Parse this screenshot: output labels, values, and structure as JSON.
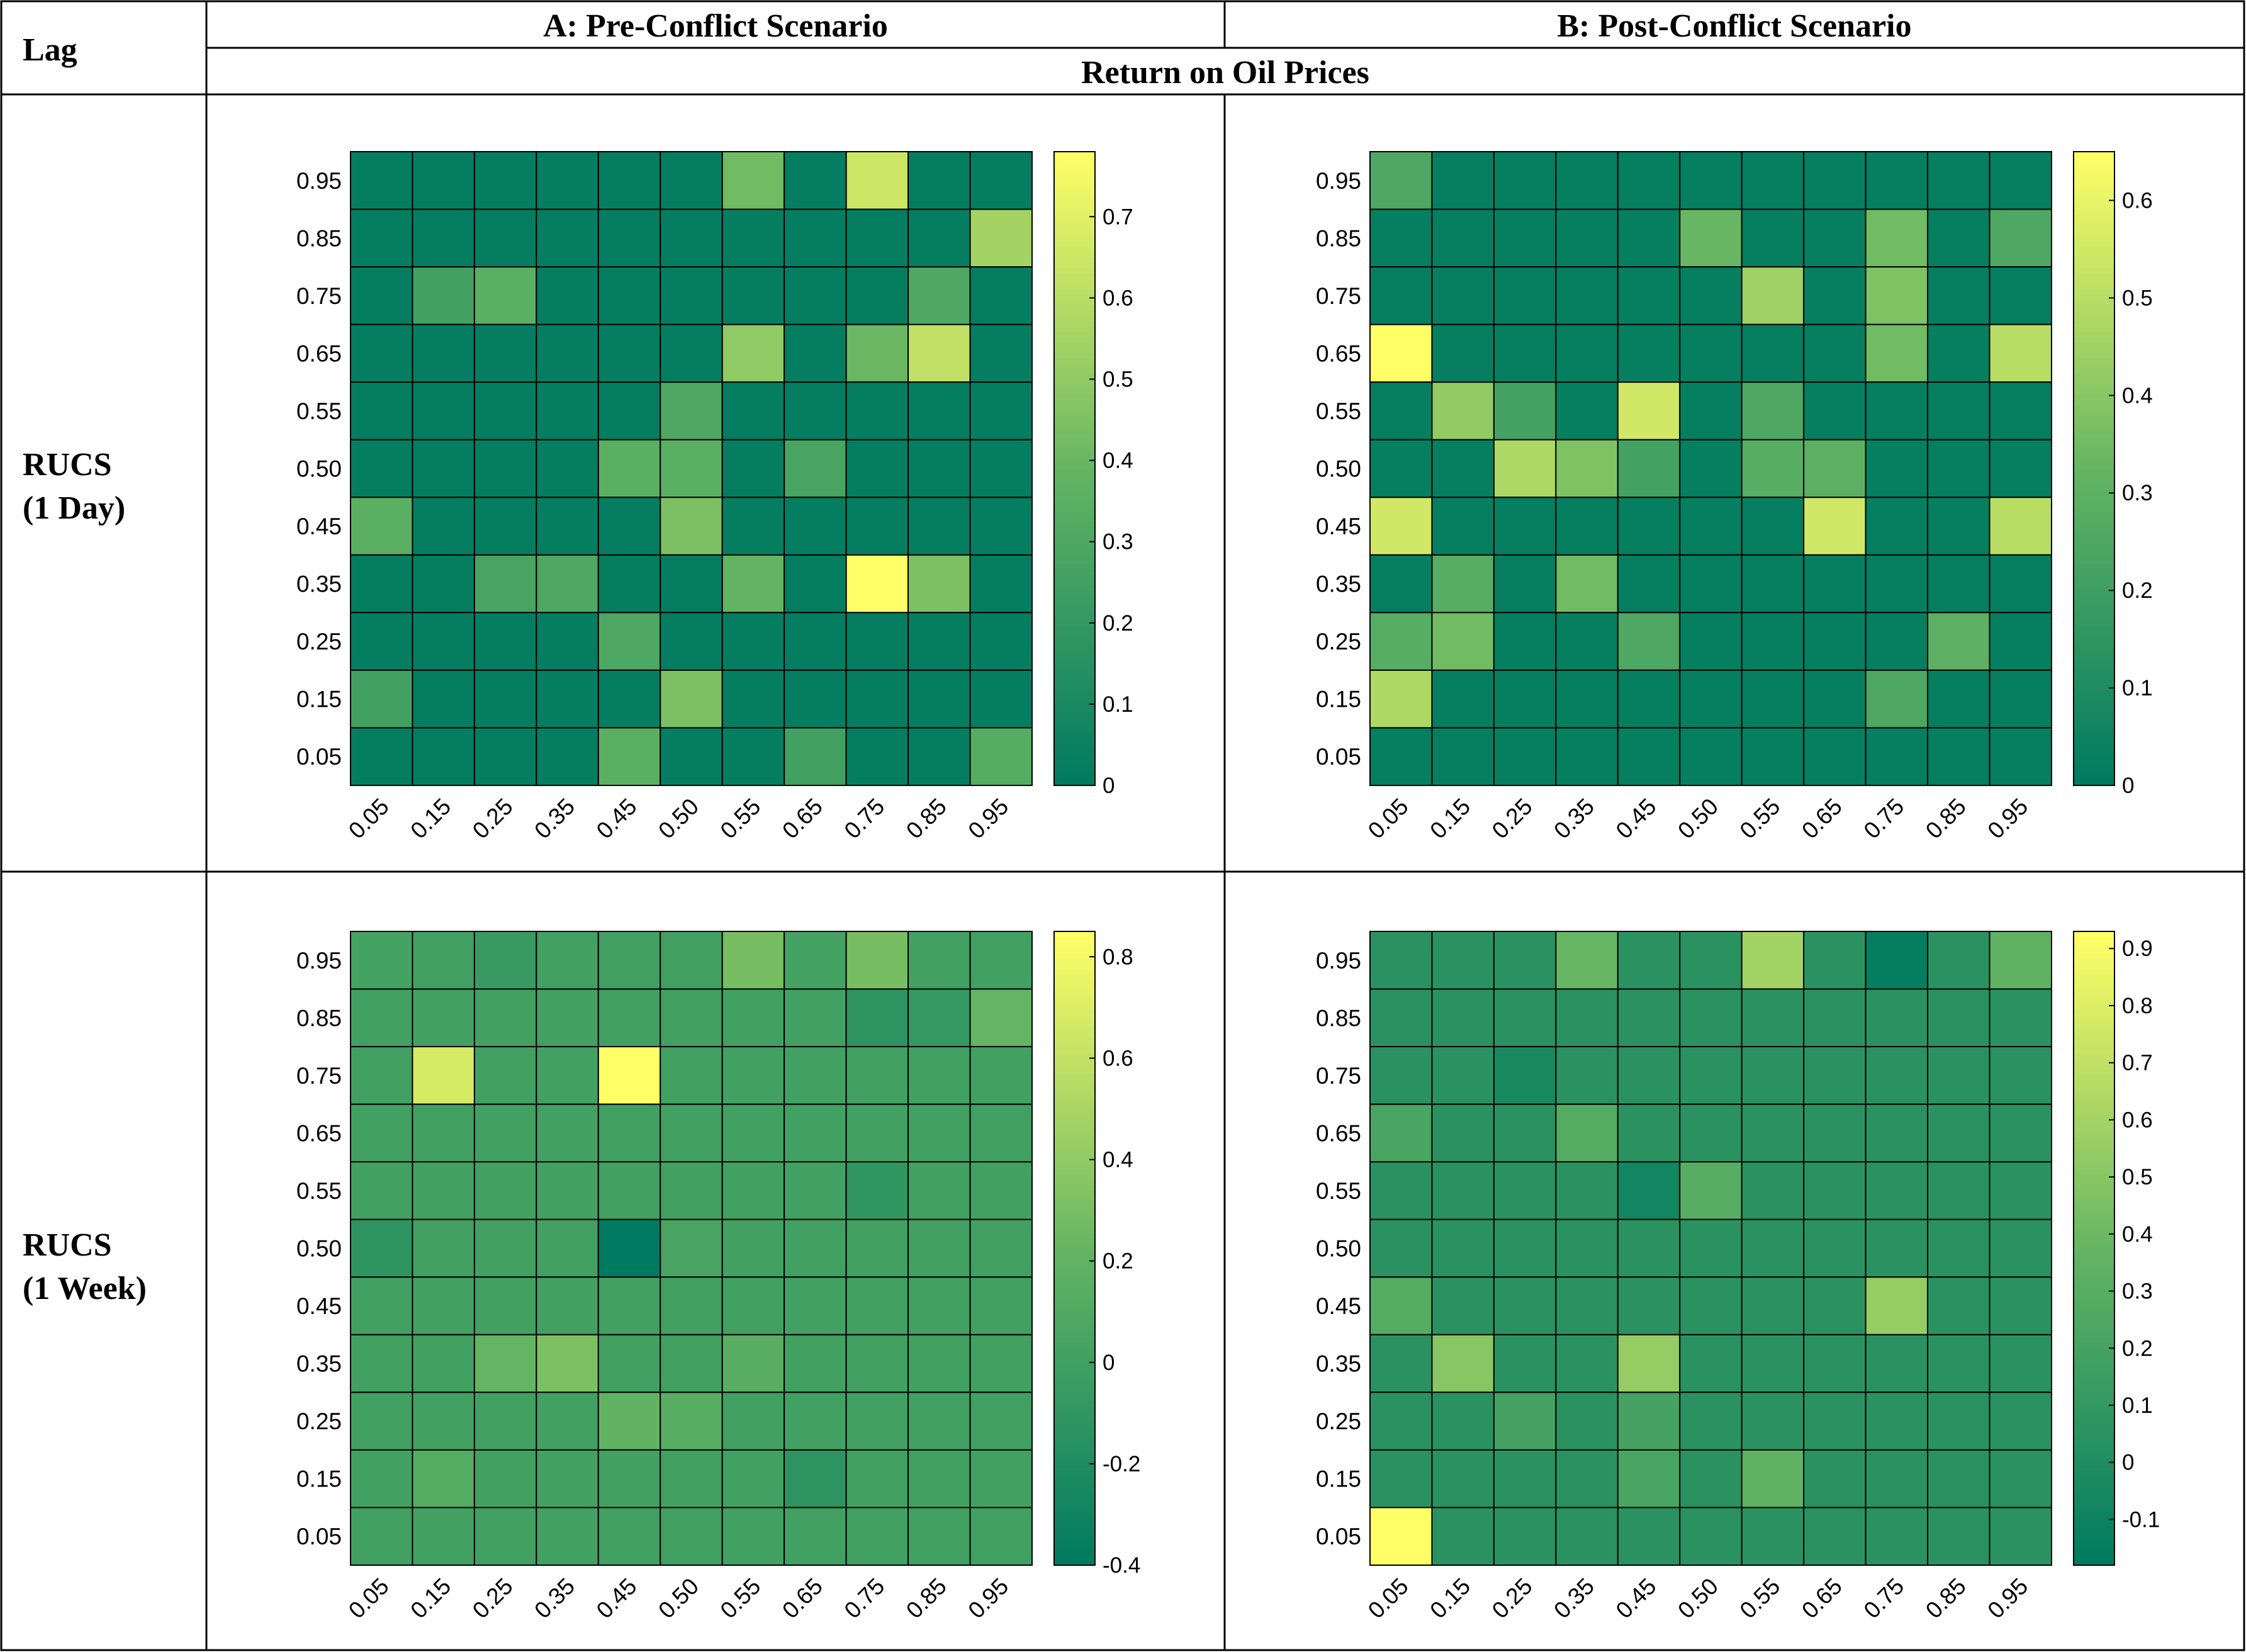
{
  "table": {
    "lag_header": "Lag",
    "col_a_header": "A: Pre-Conflict Scenario",
    "col_b_header": "B: Post-Conflict Scenario",
    "span_header": "Return on Oil Prices",
    "rows": [
      {
        "label_line1": "RUCS",
        "label_line2": "(1 Day)"
      },
      {
        "label_line1": "RUCS",
        "label_line2": "(1 Week)"
      }
    ]
  },
  "colormap": {
    "low": "#007a60",
    "mid": "#65b563",
    "high": "#ffff66"
  },
  "chart_data": [
    {
      "type": "heatmap",
      "panel": "A: Pre-Conflict Scenario / RUCS (1 Day)",
      "x_categories": [
        "0.05",
        "0.15",
        "0.25",
        "0.35",
        "0.45",
        "0.50",
        "0.55",
        "0.65",
        "0.75",
        "0.85",
        "0.95"
      ],
      "y_categories": [
        "0.95",
        "0.85",
        "0.75",
        "0.65",
        "0.55",
        "0.50",
        "0.45",
        "0.35",
        "0.25",
        "0.15",
        "0.05"
      ],
      "zlim": [
        0,
        0.78
      ],
      "colorbar_ticks": [
        "0",
        "0.1",
        "0.2",
        "0.3",
        "0.4",
        "0.5",
        "0.6",
        "0.7"
      ],
      "values": [
        [
          0.02,
          0.02,
          0.02,
          0.02,
          0.02,
          0.02,
          0.42,
          0.02,
          0.65,
          0.02,
          0.02
        ],
        [
          0.02,
          0.02,
          0.02,
          0.02,
          0.02,
          0.02,
          0.02,
          0.02,
          0.02,
          0.02,
          0.55
        ],
        [
          0.02,
          0.25,
          0.35,
          0.02,
          0.02,
          0.02,
          0.02,
          0.02,
          0.02,
          0.3,
          0.02
        ],
        [
          0.02,
          0.02,
          0.02,
          0.02,
          0.02,
          0.02,
          0.5,
          0.02,
          0.4,
          0.62,
          0.02
        ],
        [
          0.02,
          0.02,
          0.02,
          0.02,
          0.02,
          0.3,
          0.02,
          0.02,
          0.02,
          0.02,
          0.02
        ],
        [
          0.02,
          0.02,
          0.02,
          0.02,
          0.35,
          0.35,
          0.02,
          0.28,
          0.02,
          0.02,
          0.02
        ],
        [
          0.35,
          0.02,
          0.02,
          0.02,
          0.02,
          0.45,
          0.02,
          0.02,
          0.02,
          0.02,
          0.02
        ],
        [
          0.02,
          0.02,
          0.28,
          0.3,
          0.02,
          0.02,
          0.38,
          0.02,
          0.78,
          0.45,
          0.02
        ],
        [
          0.02,
          0.02,
          0.02,
          0.02,
          0.3,
          0.02,
          0.02,
          0.02,
          0.02,
          0.02,
          0.02
        ],
        [
          0.25,
          0.02,
          0.02,
          0.02,
          0.02,
          0.45,
          0.02,
          0.02,
          0.02,
          0.02,
          0.02
        ],
        [
          0.02,
          0.02,
          0.02,
          0.02,
          0.35,
          0.02,
          0.02,
          0.25,
          0.02,
          0.02,
          0.33
        ]
      ]
    },
    {
      "type": "heatmap",
      "panel": "B: Post-Conflict Scenario / RUCS (1 Day)",
      "x_categories": [
        "0.05",
        "0.15",
        "0.25",
        "0.35",
        "0.45",
        "0.50",
        "0.55",
        "0.65",
        "0.75",
        "0.85",
        "0.95"
      ],
      "y_categories": [
        "0.95",
        "0.85",
        "0.75",
        "0.65",
        "0.55",
        "0.50",
        "0.45",
        "0.35",
        "0.25",
        "0.15",
        "0.05"
      ],
      "zlim": [
        0,
        0.65
      ],
      "colorbar_ticks": [
        "0",
        "0.1",
        "0.2",
        "0.3",
        "0.4",
        "0.5",
        "0.6"
      ],
      "values": [
        [
          0.25,
          0.02,
          0.02,
          0.02,
          0.02,
          0.02,
          0.02,
          0.02,
          0.02,
          0.02,
          0.02
        ],
        [
          0.02,
          0.02,
          0.02,
          0.02,
          0.02,
          0.33,
          0.02,
          0.02,
          0.35,
          0.02,
          0.25
        ],
        [
          0.02,
          0.02,
          0.02,
          0.02,
          0.02,
          0.02,
          0.45,
          0.02,
          0.38,
          0.02,
          0.02
        ],
        [
          0.65,
          0.02,
          0.02,
          0.02,
          0.02,
          0.02,
          0.02,
          0.02,
          0.35,
          0.02,
          0.5
        ],
        [
          0.02,
          0.42,
          0.22,
          0.02,
          0.55,
          0.02,
          0.25,
          0.02,
          0.02,
          0.02,
          0.02
        ],
        [
          0.02,
          0.02,
          0.48,
          0.38,
          0.22,
          0.02,
          0.28,
          0.3,
          0.02,
          0.02,
          0.02
        ],
        [
          0.55,
          0.02,
          0.02,
          0.02,
          0.02,
          0.02,
          0.02,
          0.55,
          0.02,
          0.02,
          0.5
        ],
        [
          0.02,
          0.28,
          0.02,
          0.35,
          0.02,
          0.02,
          0.02,
          0.02,
          0.02,
          0.02,
          0.02
        ],
        [
          0.28,
          0.35,
          0.02,
          0.02,
          0.25,
          0.02,
          0.02,
          0.02,
          0.02,
          0.3,
          0.02
        ],
        [
          0.48,
          0.02,
          0.02,
          0.02,
          0.02,
          0.02,
          0.02,
          0.02,
          0.25,
          0.02,
          0.02
        ],
        [
          0.02,
          0.02,
          0.02,
          0.02,
          0.02,
          0.02,
          0.02,
          0.02,
          0.02,
          0.02,
          0.02
        ]
      ]
    },
    {
      "type": "heatmap",
      "panel": "A: Pre-Conflict Scenario / RUCS (1 Week)",
      "x_categories": [
        "0.05",
        "0.15",
        "0.25",
        "0.35",
        "0.45",
        "0.50",
        "0.55",
        "0.65",
        "0.75",
        "0.85",
        "0.95"
      ],
      "y_categories": [
        "0.95",
        "0.85",
        "0.75",
        "0.65",
        "0.55",
        "0.50",
        "0.45",
        "0.35",
        "0.25",
        "0.15",
        "0.05"
      ],
      "zlim": [
        -0.4,
        0.85
      ],
      "colorbar_ticks": [
        "-0.4",
        "-0.2",
        "0",
        "0.2",
        "0.4",
        "0.6",
        "0.8"
      ],
      "values": [
        [
          0.02,
          0.0,
          -0.05,
          0.0,
          0.0,
          0.0,
          0.3,
          0.02,
          0.3,
          0.0,
          0.0
        ],
        [
          0.0,
          0.0,
          0.0,
          0.0,
          0.0,
          0.0,
          0.0,
          0.0,
          -0.12,
          -0.08,
          0.22
        ],
        [
          0.0,
          0.68,
          0.0,
          0.0,
          0.85,
          0.0,
          0.0,
          0.0,
          0.0,
          0.0,
          0.0
        ],
        [
          0.0,
          0.0,
          0.0,
          0.0,
          0.0,
          0.0,
          0.0,
          0.0,
          0.0,
          0.0,
          0.0
        ],
        [
          0.0,
          0.0,
          0.0,
          0.0,
          0.0,
          0.0,
          0.0,
          0.0,
          -0.1,
          0.0,
          0.0
        ],
        [
          -0.12,
          0.0,
          0.0,
          0.0,
          -0.4,
          0.05,
          0.0,
          0.0,
          0.0,
          0.0,
          0.0
        ],
        [
          0.0,
          0.0,
          0.0,
          0.0,
          0.0,
          0.0,
          0.0,
          0.0,
          0.0,
          0.0,
          0.0
        ],
        [
          0.0,
          0.0,
          0.22,
          0.32,
          0.0,
          0.0,
          0.15,
          0.0,
          0.0,
          0.0,
          0.0
        ],
        [
          0.0,
          0.0,
          0.0,
          0.0,
          0.2,
          0.15,
          0.0,
          0.0,
          0.0,
          0.0,
          0.0
        ],
        [
          0.0,
          0.12,
          0.0,
          0.0,
          0.0,
          0.0,
          0.0,
          -0.12,
          0.0,
          0.0,
          0.0
        ],
        [
          0.0,
          0.0,
          0.0,
          0.0,
          0.0,
          0.0,
          0.0,
          0.0,
          0.0,
          0.0,
          0.0
        ]
      ]
    },
    {
      "type": "heatmap",
      "panel": "B: Post-Conflict Scenario / RUCS (1 Week)",
      "x_categories": [
        "0.05",
        "0.15",
        "0.25",
        "0.35",
        "0.45",
        "0.50",
        "0.55",
        "0.65",
        "0.75",
        "0.85",
        "0.95"
      ],
      "y_categories": [
        "0.95",
        "0.85",
        "0.75",
        "0.65",
        "0.55",
        "0.50",
        "0.45",
        "0.35",
        "0.25",
        "0.15",
        "0.05"
      ],
      "zlim": [
        -0.18,
        0.93
      ],
      "colorbar_ticks": [
        "-0.1",
        "0",
        "0.1",
        "0.2",
        "0.3",
        "0.4",
        "0.5",
        "0.6",
        "0.7",
        "0.8",
        "0.9"
      ],
      "values": [
        [
          0.05,
          0.05,
          0.05,
          0.38,
          0.05,
          0.05,
          0.6,
          0.05,
          -0.15,
          0.05,
          0.35
        ],
        [
          0.05,
          0.05,
          0.05,
          0.05,
          0.05,
          0.05,
          0.05,
          0.05,
          0.05,
          0.05,
          0.05
        ],
        [
          0.05,
          0.05,
          -0.05,
          0.05,
          0.05,
          0.05,
          0.05,
          0.05,
          0.05,
          0.05,
          0.05
        ],
        [
          0.22,
          0.05,
          0.05,
          0.28,
          0.05,
          0.05,
          0.05,
          0.05,
          0.05,
          0.05,
          0.05
        ],
        [
          0.05,
          0.05,
          0.05,
          0.05,
          -0.08,
          0.3,
          0.05,
          0.05,
          0.05,
          0.05,
          0.05
        ],
        [
          0.05,
          0.05,
          0.05,
          0.05,
          0.05,
          0.05,
          0.05,
          0.05,
          0.05,
          0.05,
          0.05
        ],
        [
          0.28,
          0.05,
          0.05,
          0.05,
          0.05,
          0.05,
          0.05,
          0.05,
          0.55,
          0.05,
          0.05
        ],
        [
          0.05,
          0.5,
          0.05,
          0.05,
          0.55,
          0.05,
          0.05,
          0.05,
          0.05,
          0.05,
          0.05
        ],
        [
          0.05,
          0.05,
          0.2,
          0.05,
          0.2,
          0.05,
          0.05,
          0.05,
          0.05,
          0.05,
          0.05
        ],
        [
          0.05,
          0.05,
          0.05,
          0.05,
          0.22,
          0.05,
          0.35,
          0.05,
          0.05,
          0.05,
          0.05
        ],
        [
          0.93,
          0.05,
          0.05,
          0.05,
          0.05,
          0.05,
          0.05,
          0.05,
          0.05,
          0.05,
          0.05
        ]
      ]
    }
  ]
}
